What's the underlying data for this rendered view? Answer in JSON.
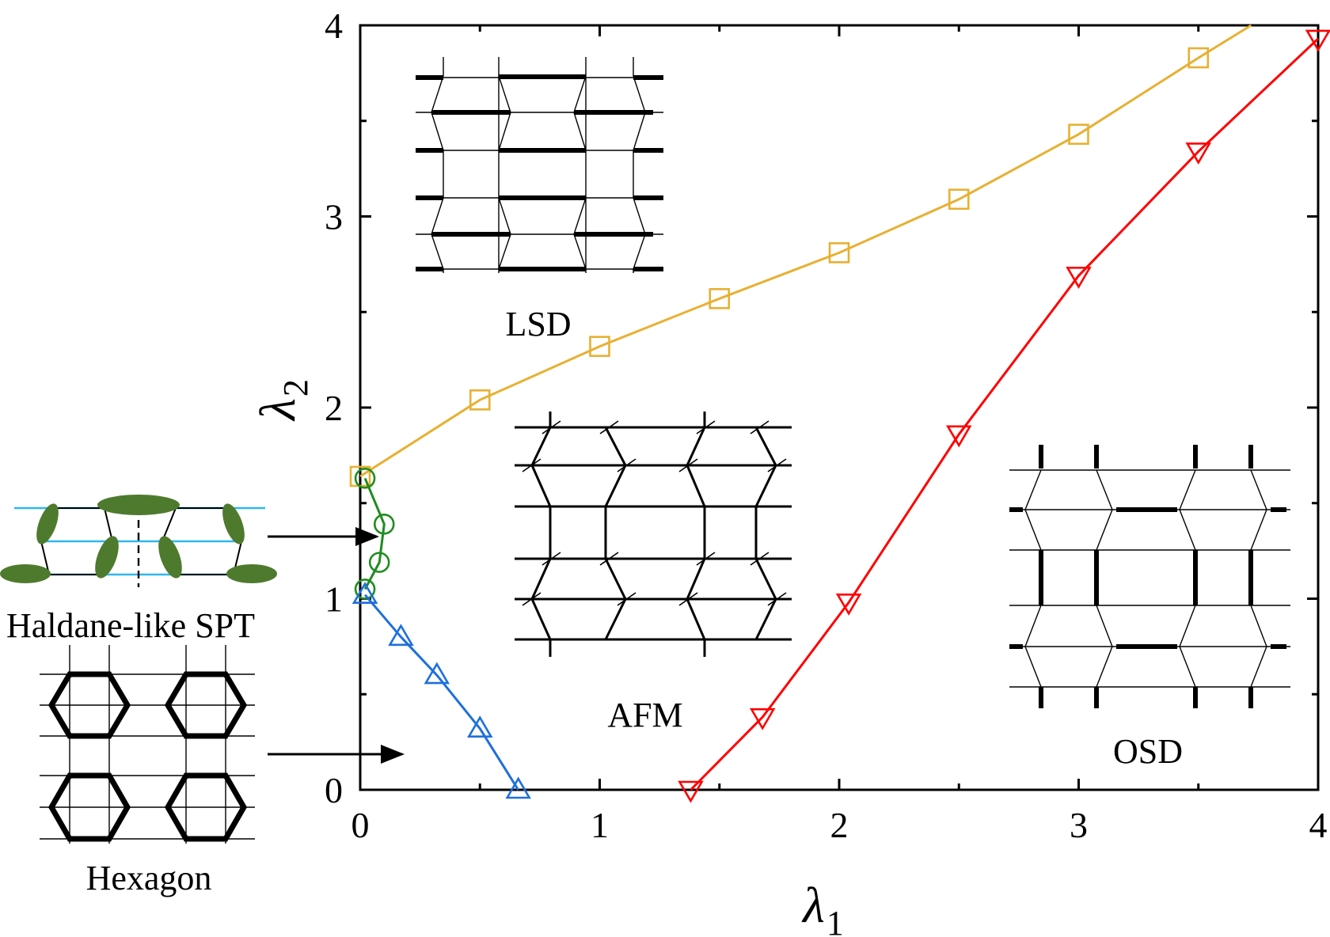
{
  "chart_data": {
    "type": "line",
    "title": "",
    "xlabel": "λ",
    "xlabel_sub": "1",
    "ylabel": "λ",
    "ylabel_sub": "2",
    "xlim": [
      0,
      4
    ],
    "ylim": [
      0,
      4
    ],
    "xticks": [
      0,
      1,
      2,
      3,
      4
    ],
    "yticks": [
      0,
      1,
      2,
      3,
      4
    ],
    "series": [
      {
        "name": "LSD-AFM boundary",
        "color": "#E8B032",
        "marker": "square",
        "points": [
          [
            0.0,
            1.64
          ],
          [
            0.5,
            2.04
          ],
          [
            1.0,
            2.32
          ],
          [
            1.5,
            2.57
          ],
          [
            2.0,
            2.81
          ],
          [
            2.5,
            3.09
          ],
          [
            3.0,
            3.43
          ],
          [
            3.5,
            3.83
          ],
          [
            3.72,
            4.0
          ]
        ]
      },
      {
        "name": "AFM-OSD boundary",
        "color": "#FF0000",
        "marker": "triangle-down",
        "points": [
          [
            1.38,
            0.0
          ],
          [
            1.68,
            0.38
          ],
          [
            2.04,
            0.98
          ],
          [
            2.5,
            1.86
          ],
          [
            3.0,
            2.69
          ],
          [
            3.5,
            3.34
          ],
          [
            4.0,
            3.93
          ]
        ]
      },
      {
        "name": "Haldane-like SPT boundary",
        "color": "#1F8C1F",
        "marker": "circle",
        "points": [
          [
            0.02,
            1.63
          ],
          [
            0.1,
            1.39
          ],
          [
            0.08,
            1.19
          ],
          [
            0.02,
            1.05
          ]
        ]
      },
      {
        "name": "Hexagon-AFM boundary",
        "color": "#1E6FDC",
        "marker": "triangle-up",
        "points": [
          [
            0.02,
            1.02
          ],
          [
            0.17,
            0.8
          ],
          [
            0.32,
            0.6
          ],
          [
            0.5,
            0.32
          ],
          [
            0.66,
            0.0
          ]
        ]
      }
    ],
    "phase_labels": [
      "LSD",
      "AFM",
      "OSD"
    ],
    "side_labels": [
      "Haldane-like SPT",
      "Hexagon"
    ]
  }
}
